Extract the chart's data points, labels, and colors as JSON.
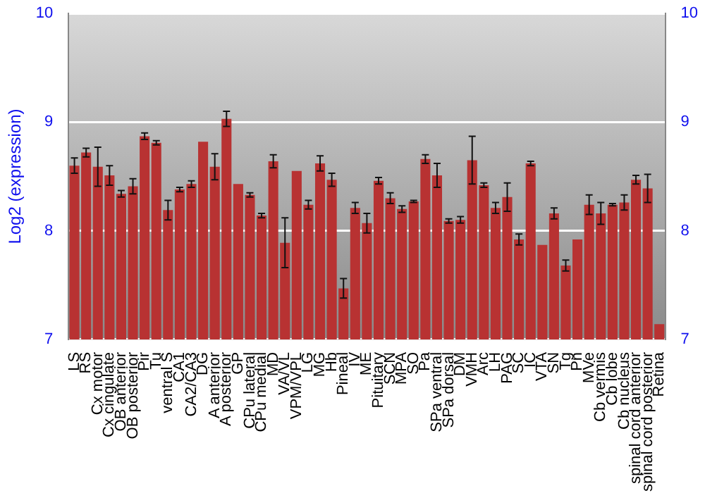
{
  "chart_data": {
    "type": "bar",
    "ylabel": "Log2 (expression)",
    "categories": [
      "LS",
      "RS",
      "Cx motor",
      "Cx cingulate",
      "OB anterior",
      "OB posterior",
      "Pir",
      "Tu",
      "ventral S",
      "CA1",
      "CA2/CA3",
      "DG",
      "A anterior",
      "A posterior",
      "GP",
      "CPu lateral",
      "CPu medial",
      "MD",
      "VA/VL",
      "VPM/VPL",
      "LG",
      "MG",
      "Hb",
      "Pineal",
      "IV",
      "ME",
      "Pituitary",
      "SCN",
      "MPA",
      "SO",
      "Pa",
      "SPa ventral",
      "SPa dorsal",
      "DM",
      "VMH",
      "Arc",
      "LH",
      "PAG",
      "SC",
      "IC",
      "VTA",
      "SN",
      "Tg",
      "Pn",
      "MVe",
      "Cb vermis",
      "Cb lobe",
      "Cb nucleus",
      "spinal cord anterior",
      "spinal cord posterior",
      "Retina"
    ],
    "values": [
      8.6,
      8.72,
      8.59,
      8.51,
      8.34,
      8.41,
      8.87,
      8.81,
      8.19,
      8.38,
      8.43,
      8.82,
      8.59,
      9.03,
      8.43,
      8.33,
      8.14,
      8.64,
      7.89,
      8.55,
      8.24,
      8.62,
      8.47,
      7.47,
      8.21,
      8.07,
      8.46,
      8.3,
      8.2,
      8.27,
      8.66,
      8.51,
      8.09,
      8.1,
      8.65,
      8.42,
      8.21,
      8.31,
      7.92,
      8.62,
      7.87,
      8.16,
      7.68,
      7.92,
      8.24,
      8.16,
      8.24,
      8.26,
      8.47,
      8.39,
      7.14
    ],
    "errors": [
      0.07,
      0.04,
      0.18,
      0.09,
      0.03,
      0.07,
      0.03,
      0.02,
      0.09,
      0.02,
      0.03,
      null,
      0.12,
      0.07,
      null,
      0.02,
      0.02,
      0.06,
      0.23,
      null,
      0.04,
      0.07,
      0.06,
      0.09,
      0.05,
      0.09,
      0.03,
      0.05,
      0.03,
      0.01,
      0.04,
      0.11,
      0.02,
      0.03,
      0.22,
      0.02,
      0.05,
      0.13,
      0.05,
      0.02,
      null,
      0.05,
      0.05,
      null,
      0.09,
      0.1,
      0.01,
      0.07,
      0.04,
      0.13,
      null
    ],
    "color": "#b83232",
    "ylim": [
      7,
      10
    ],
    "yticks": [
      7,
      8,
      9,
      10
    ],
    "y2lim": [
      7,
      10
    ],
    "y2ticks": [
      7,
      8,
      9,
      10
    ],
    "grid": "y",
    "legend": false
  }
}
